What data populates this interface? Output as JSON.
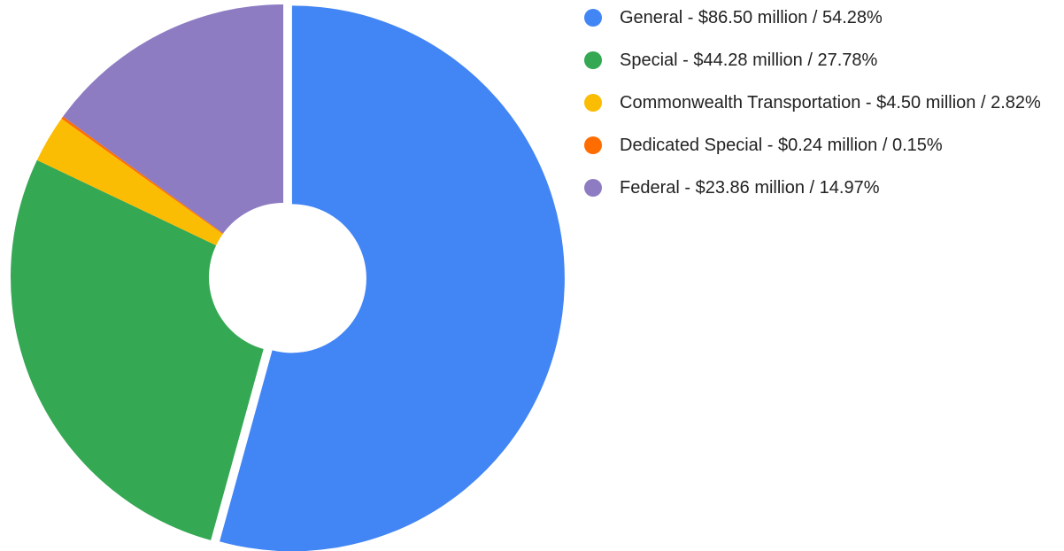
{
  "chart_data": {
    "type": "pie",
    "categories": [
      "General - $86.50 million / 54.28%",
      "Special - $44.28 million / 27.78%",
      "Commonwealth Transportation - $4.50 million / 2.82%",
      "Dedicated Special - $0.24 million / 0.15%",
      "Federal - $23.86 million / 14.97%"
    ],
    "values": [
      54.28,
      27.78,
      2.82,
      0.15,
      14.97
    ],
    "colors": [
      "#4285f4",
      "#34a853",
      "#fbbc04",
      "#ff6d01",
      "#8e7cc3"
    ],
    "donut": true,
    "legend": "right"
  }
}
